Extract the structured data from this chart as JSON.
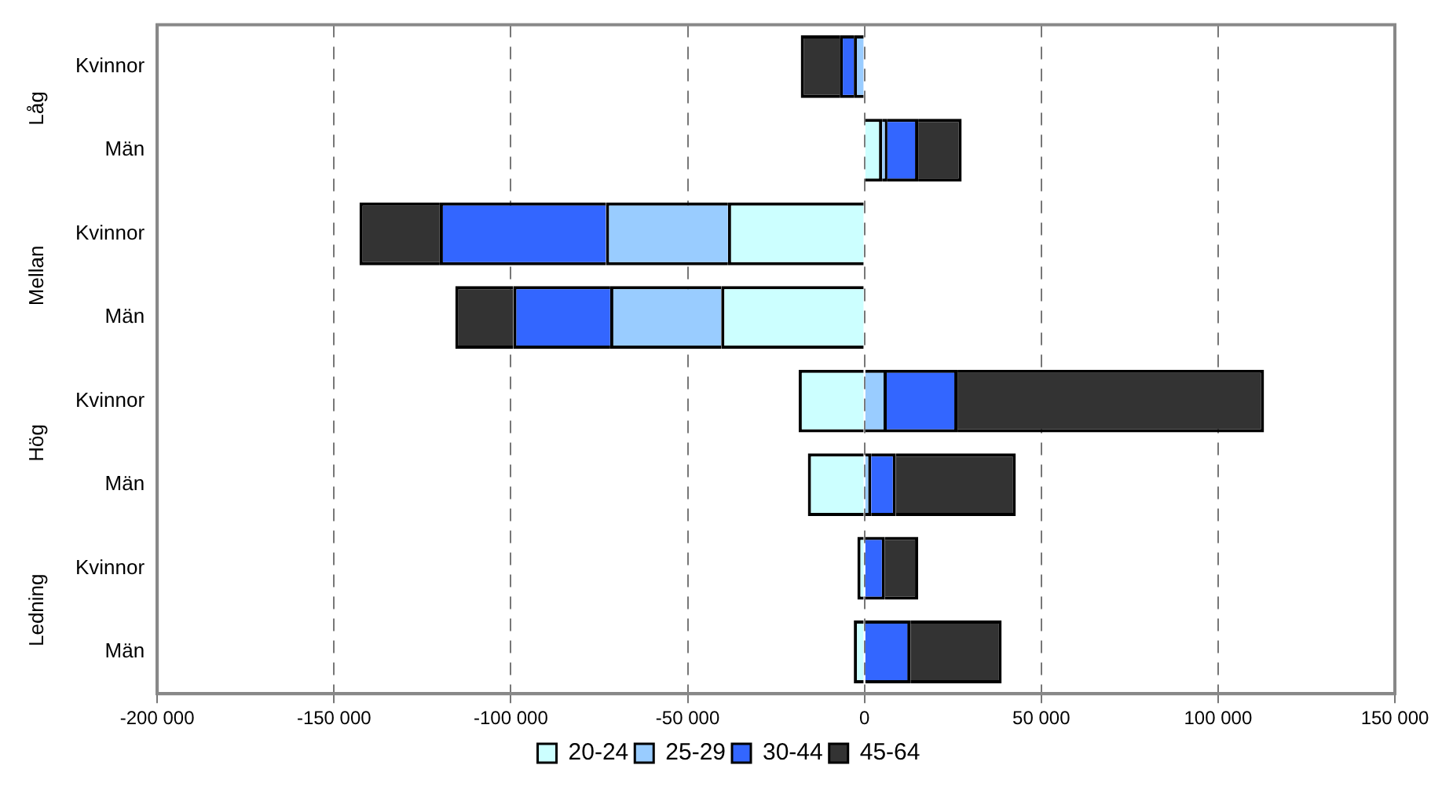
{
  "chart_data": {
    "type": "bar",
    "orientation": "horizontal",
    "stacked": true,
    "categories": [
      "Kvinnor",
      "Män",
      "Kvinnor",
      "Män",
      "Kvinnor",
      "Män",
      "Kvinnor",
      "Män"
    ],
    "annotations": [
      "Låg",
      "Mellan",
      "Hög",
      "Ledning"
    ],
    "series": [
      {
        "name": "20-24",
        "color": "#ccffff",
        "values": [
          0,
          5000,
          -38600,
          -40500,
          -18600,
          -16000,
          -2000,
          -3000
        ]
      },
      {
        "name": "25-29",
        "color": "#99ccff",
        "values": [
          -3000,
          1500,
          -34500,
          -31400,
          6300,
          1900,
          0,
          0
        ]
      },
      {
        "name": "30-44",
        "color": "#3366ff",
        "values": [
          -4000,
          8700,
          -47000,
          -27400,
          20000,
          7000,
          5800,
          13000
        ]
      },
      {
        "name": "45-64",
        "color": "#333333",
        "values": [
          -11000,
          12300,
          -22700,
          -16400,
          86700,
          33900,
          9400,
          25800
        ]
      }
    ],
    "xlim": [
      -200000,
      150000
    ],
    "xticks": [
      {
        "value": -200000,
        "label": "-200 000"
      },
      {
        "value": -150000,
        "label": "-150 000"
      },
      {
        "value": -100000,
        "label": "-100 000"
      },
      {
        "value": -50000,
        "label": "-50 000"
      },
      0,
      {
        "value": 50000,
        "label": "50 000"
      },
      {
        "value": 100000,
        "label": "100 000"
      },
      {
        "value": 150000,
        "label": "150 000"
      }
    ],
    "grid": "x",
    "legend": "bottom"
  }
}
